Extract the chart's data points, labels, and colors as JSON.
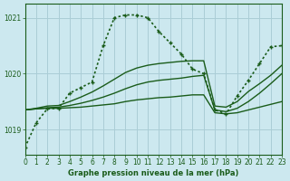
{
  "xlabel": "Graphe pression niveau de la mer (hPa)",
  "bg_color": "#cce8ef",
  "grid_color": "#aacdd6",
  "line_color": "#1a5c1a",
  "xlim": [
    0,
    23
  ],
  "ylim": [
    1018.55,
    1021.25
  ],
  "yticks": [
    1019,
    1020,
    1021
  ],
  "xticks": [
    0,
    1,
    2,
    3,
    4,
    5,
    6,
    7,
    8,
    9,
    10,
    11,
    12,
    13,
    14,
    15,
    16,
    17,
    18,
    19,
    20,
    21,
    22,
    23
  ],
  "series": [
    {
      "x": [
        0,
        1,
        2,
        3,
        4,
        5,
        6,
        7,
        8,
        9,
        10,
        11,
        12,
        13,
        14,
        15,
        16,
        17,
        18,
        19,
        20,
        21,
        22,
        23
      ],
      "y": [
        1019.35,
        1019.37,
        1019.38,
        1019.38,
        1019.39,
        1019.4,
        1019.42,
        1019.44,
        1019.46,
        1019.5,
        1019.53,
        1019.55,
        1019.57,
        1019.58,
        1019.6,
        1019.62,
        1019.62,
        1019.3,
        1019.28,
        1019.3,
        1019.35,
        1019.4,
        1019.45,
        1019.5
      ],
      "linestyle": "solid",
      "linewidth": 1.0,
      "marker": null
    },
    {
      "x": [
        0,
        1,
        2,
        3,
        4,
        5,
        6,
        7,
        8,
        9,
        10,
        11,
        12,
        13,
        14,
        15,
        16,
        17,
        18,
        19,
        20,
        21,
        22,
        23
      ],
      "y": [
        1019.35,
        1019.37,
        1019.39,
        1019.4,
        1019.43,
        1019.47,
        1019.52,
        1019.58,
        1019.65,
        1019.73,
        1019.8,
        1019.85,
        1019.88,
        1019.9,
        1019.92,
        1019.95,
        1019.97,
        1019.35,
        1019.32,
        1019.38,
        1019.5,
        1019.65,
        1019.82,
        1020.0
      ],
      "linestyle": "solid",
      "linewidth": 1.0,
      "marker": null
    },
    {
      "x": [
        0,
        1,
        2,
        3,
        4,
        5,
        6,
        7,
        8,
        9,
        10,
        11,
        12,
        13,
        14,
        15,
        16,
        17,
        18,
        19,
        20,
        21,
        22,
        23
      ],
      "y": [
        1019.35,
        1019.38,
        1019.42,
        1019.43,
        1019.5,
        1019.58,
        1019.67,
        1019.78,
        1019.9,
        1020.02,
        1020.1,
        1020.15,
        1020.18,
        1020.2,
        1020.22,
        1020.23,
        1020.23,
        1019.42,
        1019.4,
        1019.5,
        1019.68,
        1019.82,
        1019.97,
        1020.15
      ],
      "linestyle": "solid",
      "linewidth": 1.0,
      "marker": null
    },
    {
      "x": [
        0,
        1,
        2,
        3,
        4,
        5,
        6,
        7,
        8,
        9,
        10,
        11,
        12,
        13,
        14,
        15,
        16,
        17,
        18,
        19,
        20,
        21,
        22,
        23
      ],
      "y": [
        1018.68,
        1019.12,
        1019.37,
        1019.38,
        1019.65,
        1019.75,
        1019.85,
        1020.5,
        1021.0,
        1021.05,
        1021.05,
        1021.0,
        1020.75,
        1020.55,
        1020.35,
        1020.08,
        1020.0,
        1019.35,
        1019.28,
        1019.6,
        1019.88,
        1020.18,
        1020.48,
        1020.5
      ],
      "linestyle": "dotted",
      "linewidth": 1.2,
      "marker": "+"
    }
  ]
}
